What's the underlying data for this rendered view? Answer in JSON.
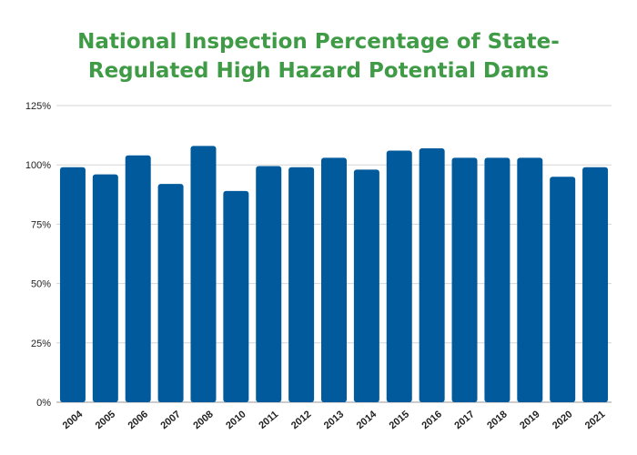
{
  "chart_data": {
    "type": "bar",
    "title_line1": "National Inspection Percentage of State-",
    "title_line2": "Regulated High Hazard Potential Dams",
    "categories": [
      "2004",
      "2005",
      "2006",
      "2007",
      "2008",
      "2010",
      "2011",
      "2012",
      "2013",
      "2014",
      "2015",
      "2016",
      "2017",
      "2018",
      "2019",
      "2020",
      "2021"
    ],
    "values": [
      99,
      96,
      104,
      92,
      108,
      89,
      99.5,
      99,
      103,
      98,
      106,
      107,
      103,
      103,
      103,
      95,
      99
    ],
    "ylim": [
      0,
      125
    ],
    "yticks": [
      {
        "value": 0,
        "label": "0%"
      },
      {
        "value": 25,
        "label": "25%"
      },
      {
        "value": 50,
        "label": "50%"
      },
      {
        "value": 75,
        "label": "75%"
      },
      {
        "value": 100,
        "label": "100%"
      },
      {
        "value": 125,
        "label": "125%"
      }
    ],
    "grid": true,
    "bar_color": "#005a9c",
    "title_color": "#3f9b46"
  }
}
